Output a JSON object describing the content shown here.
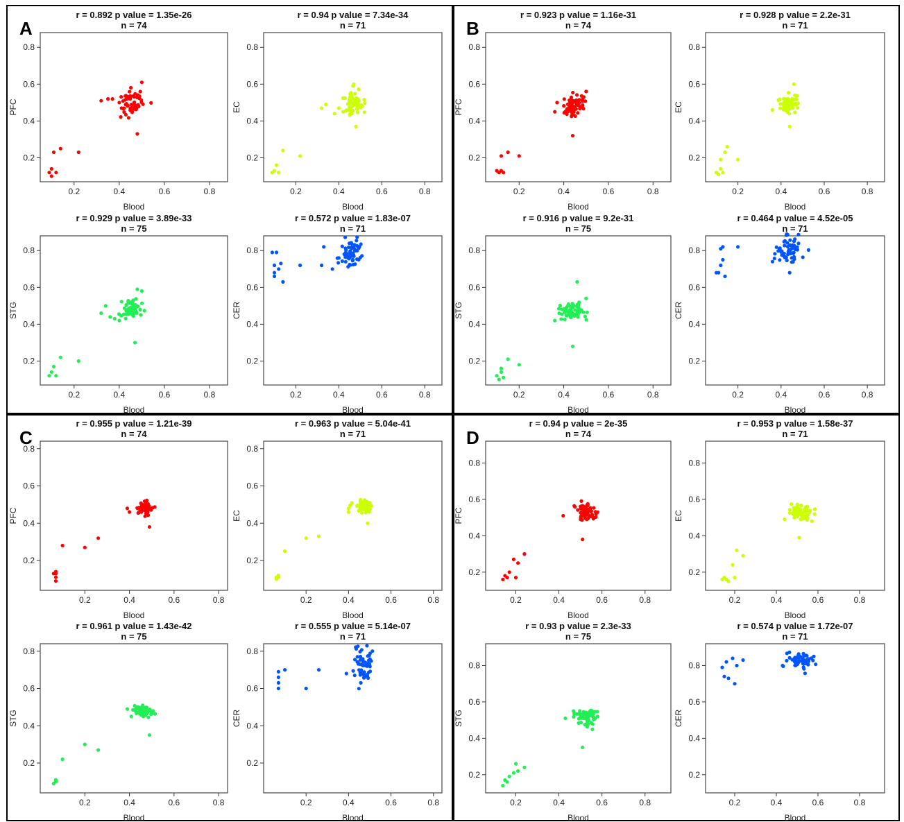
{
  "panels": [
    {
      "letter": "A"
    },
    {
      "letter": "B"
    },
    {
      "letter": "C"
    },
    {
      "letter": "D"
    }
  ],
  "axis_ticks": [
    0.2,
    0.4,
    0.6,
    0.8
  ],
  "colors": {
    "PFC": "#ff0000",
    "EC": "#ccff00",
    "STG": "#22ee55",
    "CER": "#0055ff"
  },
  "chart_data": [
    {
      "panel": "A",
      "type": "scatter",
      "region": "PFC",
      "title": "r = 0.892 p value = 1.35e-26",
      "subtitle": "n = 74",
      "xlabel": "Blood",
      "ylabel": "PFC",
      "xlim": [
        0.05,
        0.88
      ],
      "ylim": [
        0.07,
        0.88
      ],
      "color": "#ff0000",
      "outliers": [
        [
          0.09,
          0.12
        ],
        [
          0.1,
          0.14
        ],
        [
          0.12,
          0.12
        ],
        [
          0.1,
          0.1
        ],
        [
          0.11,
          0.23
        ],
        [
          0.14,
          0.25
        ],
        [
          0.22,
          0.23
        ],
        [
          0.32,
          0.51
        ],
        [
          0.35,
          0.52
        ],
        [
          0.37,
          0.52
        ],
        [
          0.4,
          0.5
        ],
        [
          0.41,
          0.47
        ],
        [
          0.48,
          0.33
        ],
        [
          0.5,
          0.61
        ]
      ],
      "cluster": {
        "n": 60,
        "cx": 0.46,
        "cy": 0.5,
        "sx": 0.025,
        "sy": 0.035,
        "seed": 101
      }
    },
    {
      "panel": "A",
      "type": "scatter",
      "region": "EC",
      "title": "r = 0.94 p value = 7.34e-34",
      "subtitle": "n = 71",
      "xlabel": "Blood",
      "ylabel": "EC",
      "xlim": [
        0.05,
        0.88
      ],
      "ylim": [
        0.07,
        0.88
      ],
      "color": "#ccff00",
      "outliers": [
        [
          0.09,
          0.12
        ],
        [
          0.1,
          0.13
        ],
        [
          0.11,
          0.16
        ],
        [
          0.12,
          0.12
        ],
        [
          0.14,
          0.24
        ],
        [
          0.22,
          0.21
        ],
        [
          0.32,
          0.47
        ],
        [
          0.34,
          0.49
        ],
        [
          0.38,
          0.44
        ],
        [
          0.4,
          0.47
        ],
        [
          0.42,
          0.45
        ],
        [
          0.47,
          0.6
        ],
        [
          0.48,
          0.37
        ]
      ],
      "cluster": {
        "n": 58,
        "cx": 0.47,
        "cy": 0.5,
        "sx": 0.025,
        "sy": 0.03,
        "seed": 202
      }
    },
    {
      "panel": "A",
      "type": "scatter",
      "region": "STG",
      "title": "r = 0.929 p value = 3.89e-33",
      "subtitle": "n = 75",
      "xlabel": "Blood",
      "ylabel": "STG",
      "xlim": [
        0.05,
        0.88
      ],
      "ylim": [
        0.07,
        0.88
      ],
      "color": "#22ee55",
      "outliers": [
        [
          0.09,
          0.12
        ],
        [
          0.1,
          0.14
        ],
        [
          0.11,
          0.17
        ],
        [
          0.12,
          0.12
        ],
        [
          0.14,
          0.22
        ],
        [
          0.22,
          0.2
        ],
        [
          0.32,
          0.46
        ],
        [
          0.34,
          0.5
        ],
        [
          0.36,
          0.44
        ],
        [
          0.38,
          0.43
        ],
        [
          0.4,
          0.42
        ],
        [
          0.47,
          0.3
        ],
        [
          0.48,
          0.59
        ],
        [
          0.5,
          0.58
        ]
      ],
      "cluster": {
        "n": 61,
        "cx": 0.46,
        "cy": 0.48,
        "sx": 0.022,
        "sy": 0.025,
        "seed": 303
      }
    },
    {
      "panel": "A",
      "type": "scatter",
      "region": "CER",
      "title": "r = 0.572 p value = 1.83e-07",
      "subtitle": "n = 71",
      "xlabel": "Blood",
      "ylabel": "CER",
      "xlim": [
        0.05,
        0.88
      ],
      "ylim": [
        0.07,
        0.88
      ],
      "color": "#0055ff",
      "outliers": [
        [
          0.09,
          0.79
        ],
        [
          0.1,
          0.72
        ],
        [
          0.11,
          0.79
        ],
        [
          0.1,
          0.68
        ],
        [
          0.1,
          0.66
        ],
        [
          0.12,
          0.7
        ],
        [
          0.13,
          0.73
        ],
        [
          0.14,
          0.63
        ],
        [
          0.22,
          0.72
        ],
        [
          0.32,
          0.72
        ],
        [
          0.33,
          0.82
        ],
        [
          0.37,
          0.7
        ],
        [
          0.4,
          0.76
        ]
      ],
      "cluster": {
        "n": 58,
        "cx": 0.46,
        "cy": 0.78,
        "sx": 0.022,
        "sy": 0.04,
        "seed": 404
      }
    },
    {
      "panel": "B",
      "type": "scatter",
      "region": "PFC",
      "title": "r = 0.923 p value = 1.16e-31",
      "subtitle": "n = 74",
      "xlabel": "Blood",
      "ylabel": "PFC",
      "xlim": [
        0.05,
        0.88
      ],
      "ylim": [
        0.07,
        0.88
      ],
      "color": "#ff0000",
      "outliers": [
        [
          0.1,
          0.13
        ],
        [
          0.11,
          0.12
        ],
        [
          0.12,
          0.13
        ],
        [
          0.13,
          0.12
        ],
        [
          0.12,
          0.21
        ],
        [
          0.15,
          0.23
        ],
        [
          0.2,
          0.21
        ],
        [
          0.36,
          0.45
        ],
        [
          0.37,
          0.5
        ],
        [
          0.44,
          0.32
        ],
        [
          0.5,
          0.56
        ],
        [
          0.49,
          0.53
        ]
      ],
      "cluster": {
        "n": 62,
        "cx": 0.44,
        "cy": 0.48,
        "sx": 0.025,
        "sy": 0.03,
        "seed": 505
      }
    },
    {
      "panel": "B",
      "type": "scatter",
      "region": "EC",
      "title": "r = 0.928 p value = 2.2e-31",
      "subtitle": "n = 71",
      "xlabel": "Blood",
      "ylabel": "EC",
      "xlim": [
        0.05,
        0.88
      ],
      "ylim": [
        0.07,
        0.88
      ],
      "color": "#ccff00",
      "outliers": [
        [
          0.1,
          0.12
        ],
        [
          0.11,
          0.11
        ],
        [
          0.12,
          0.14
        ],
        [
          0.13,
          0.12
        ],
        [
          0.12,
          0.19
        ],
        [
          0.14,
          0.23
        ],
        [
          0.15,
          0.26
        ],
        [
          0.2,
          0.19
        ],
        [
          0.36,
          0.46
        ],
        [
          0.44,
          0.37
        ],
        [
          0.46,
          0.6
        ]
      ],
      "cluster": {
        "n": 60,
        "cx": 0.44,
        "cy": 0.49,
        "sx": 0.025,
        "sy": 0.025,
        "seed": 606
      }
    },
    {
      "panel": "B",
      "type": "scatter",
      "region": "STG",
      "title": "r = 0.916 p value = 9.2e-31",
      "subtitle": "n = 75",
      "xlabel": "Blood",
      "ylabel": "STG",
      "xlim": [
        0.05,
        0.88
      ],
      "ylim": [
        0.07,
        0.88
      ],
      "color": "#22ee55",
      "outliers": [
        [
          0.1,
          0.12
        ],
        [
          0.11,
          0.1
        ],
        [
          0.12,
          0.14
        ],
        [
          0.13,
          0.11
        ],
        [
          0.12,
          0.16
        ],
        [
          0.15,
          0.21
        ],
        [
          0.2,
          0.18
        ],
        [
          0.36,
          0.42
        ],
        [
          0.44,
          0.28
        ],
        [
          0.46,
          0.63
        ],
        [
          0.5,
          0.54
        ]
      ],
      "cluster": {
        "n": 64,
        "cx": 0.44,
        "cy": 0.47,
        "sx": 0.028,
        "sy": 0.025,
        "seed": 707
      }
    },
    {
      "panel": "B",
      "type": "scatter",
      "region": "CER",
      "title": "r = 0.464 p value = 4.52e-05",
      "subtitle": "n = 71",
      "xlabel": "Blood",
      "ylabel": "CER",
      "xlim": [
        0.05,
        0.88
      ],
      "ylim": [
        0.07,
        0.88
      ],
      "color": "#0055ff",
      "outliers": [
        [
          0.1,
          0.68
        ],
        [
          0.11,
          0.68
        ],
        [
          0.12,
          0.81
        ],
        [
          0.13,
          0.82
        ],
        [
          0.12,
          0.72
        ],
        [
          0.13,
          0.75
        ],
        [
          0.14,
          0.66
        ],
        [
          0.2,
          0.82
        ],
        [
          0.36,
          0.74
        ],
        [
          0.44,
          0.68
        ]
      ],
      "cluster": {
        "n": 61,
        "cx": 0.44,
        "cy": 0.8,
        "sx": 0.03,
        "sy": 0.035,
        "seed": 808
      }
    },
    {
      "panel": "C",
      "type": "scatter",
      "region": "PFC",
      "title": "r = 0.955 p value = 1.21e-39",
      "subtitle": "n = 74",
      "xlabel": "Blood",
      "ylabel": "PFC",
      "xlim": [
        0.0,
        0.84
      ],
      "ylim": [
        0.04,
        0.84
      ],
      "color": "#ff0000",
      "outliers": [
        [
          0.07,
          0.09
        ],
        [
          0.07,
          0.11
        ],
        [
          0.07,
          0.13
        ],
        [
          0.07,
          0.14
        ],
        [
          0.06,
          0.13
        ],
        [
          0.1,
          0.28
        ],
        [
          0.2,
          0.27
        ],
        [
          0.26,
          0.32
        ],
        [
          0.39,
          0.48
        ],
        [
          0.4,
          0.46
        ],
        [
          0.49,
          0.38
        ]
      ],
      "cluster": {
        "n": 63,
        "cx": 0.47,
        "cy": 0.48,
        "sx": 0.018,
        "sy": 0.018,
        "seed": 909
      }
    },
    {
      "panel": "C",
      "type": "scatter",
      "region": "EC",
      "title": "r = 0.963 p value = 5.04e-41",
      "subtitle": "n = 71",
      "xlabel": "Blood",
      "ylabel": "EC",
      "xlim": [
        0.0,
        0.84
      ],
      "ylim": [
        0.04,
        0.84
      ],
      "color": "#ccff00",
      "outliers": [
        [
          0.06,
          0.11
        ],
        [
          0.06,
          0.1
        ],
        [
          0.07,
          0.12
        ],
        [
          0.07,
          0.11
        ],
        [
          0.1,
          0.25
        ],
        [
          0.2,
          0.32
        ],
        [
          0.26,
          0.33
        ],
        [
          0.4,
          0.46
        ],
        [
          0.4,
          0.48
        ],
        [
          0.49,
          0.4
        ]
      ],
      "cluster": {
        "n": 61,
        "cx": 0.47,
        "cy": 0.49,
        "sx": 0.018,
        "sy": 0.013,
        "seed": 1010
      }
    },
    {
      "panel": "C",
      "type": "scatter",
      "region": "STG",
      "title": "r = 0.961 p value = 1.43e-42",
      "subtitle": "n = 75",
      "xlabel": "Blood",
      "ylabel": "STG",
      "xlim": [
        0.0,
        0.84
      ],
      "ylim": [
        0.04,
        0.84
      ],
      "color": "#22ee55",
      "outliers": [
        [
          0.07,
          0.1
        ],
        [
          0.07,
          0.11
        ],
        [
          0.06,
          0.09
        ],
        [
          0.07,
          0.1
        ],
        [
          0.1,
          0.22
        ],
        [
          0.2,
          0.3
        ],
        [
          0.26,
          0.27
        ],
        [
          0.39,
          0.49
        ],
        [
          0.49,
          0.35
        ]
      ],
      "cluster": {
        "n": 66,
        "cx": 0.46,
        "cy": 0.48,
        "sx": 0.02,
        "sy": 0.017,
        "seed": 1111
      }
    },
    {
      "panel": "C",
      "type": "scatter",
      "region": "CER",
      "title": "r = 0.555 p value = 5.14e-07",
      "subtitle": "n = 71",
      "xlabel": "Blood",
      "ylabel": "CER",
      "xlim": [
        0.0,
        0.84
      ],
      "ylim": [
        0.04,
        0.84
      ],
      "color": "#0055ff",
      "outliers": [
        [
          0.07,
          0.6
        ],
        [
          0.07,
          0.63
        ],
        [
          0.07,
          0.66
        ],
        [
          0.07,
          0.69
        ],
        [
          0.1,
          0.7
        ],
        [
          0.2,
          0.6
        ],
        [
          0.26,
          0.7
        ],
        [
          0.39,
          0.68
        ]
      ],
      "cluster": {
        "n": 63,
        "cx": 0.47,
        "cy": 0.73,
        "sx": 0.02,
        "sy": 0.045,
        "seed": 1212
      }
    },
    {
      "panel": "D",
      "type": "scatter",
      "region": "PFC",
      "title": "r = 0.94 p value = 2e-35",
      "subtitle": "n = 74",
      "xlabel": "Blood",
      "ylabel": "PFC",
      "xlim": [
        0.06,
        0.92
      ],
      "ylim": [
        0.1,
        0.92
      ],
      "color": "#ff0000",
      "outliers": [
        [
          0.14,
          0.16
        ],
        [
          0.15,
          0.18
        ],
        [
          0.16,
          0.17
        ],
        [
          0.17,
          0.2
        ],
        [
          0.19,
          0.27
        ],
        [
          0.2,
          0.17
        ],
        [
          0.21,
          0.25
        ],
        [
          0.24,
          0.3
        ],
        [
          0.42,
          0.51
        ],
        [
          0.51,
          0.38
        ],
        [
          0.58,
          0.53
        ]
      ],
      "cluster": {
        "n": 63,
        "cx": 0.52,
        "cy": 0.53,
        "sx": 0.025,
        "sy": 0.025,
        "seed": 1313
      }
    },
    {
      "panel": "D",
      "type": "scatter",
      "region": "EC",
      "title": "r = 0.953 p value = 1.58e-37",
      "subtitle": "n = 71",
      "xlabel": "Blood",
      "ylabel": "EC",
      "xlim": [
        0.06,
        0.92
      ],
      "ylim": [
        0.1,
        0.92
      ],
      "color": "#ccff00",
      "outliers": [
        [
          0.14,
          0.16
        ],
        [
          0.15,
          0.17
        ],
        [
          0.16,
          0.16
        ],
        [
          0.17,
          0.15
        ],
        [
          0.19,
          0.24
        ],
        [
          0.2,
          0.17
        ],
        [
          0.21,
          0.32
        ],
        [
          0.24,
          0.29
        ],
        [
          0.44,
          0.49
        ],
        [
          0.51,
          0.39
        ]
      ],
      "cluster": {
        "n": 61,
        "cx": 0.52,
        "cy": 0.53,
        "sx": 0.025,
        "sy": 0.025,
        "seed": 1414
      }
    },
    {
      "panel": "D",
      "type": "scatter",
      "region": "STG",
      "title": "r = 0.93 p value = 2.3e-33",
      "subtitle": "n = 75",
      "xlabel": "Blood",
      "ylabel": "STG",
      "xlim": [
        0.06,
        0.92
      ],
      "ylim": [
        0.1,
        0.92
      ],
      "color": "#22ee55",
      "outliers": [
        [
          0.14,
          0.14
        ],
        [
          0.15,
          0.17
        ],
        [
          0.16,
          0.16
        ],
        [
          0.17,
          0.19
        ],
        [
          0.19,
          0.21
        ],
        [
          0.2,
          0.26
        ],
        [
          0.21,
          0.22
        ],
        [
          0.24,
          0.24
        ],
        [
          0.43,
          0.51
        ],
        [
          0.51,
          0.35
        ],
        [
          0.58,
          0.52
        ]
      ],
      "cluster": {
        "n": 64,
        "cx": 0.52,
        "cy": 0.52,
        "sx": 0.025,
        "sy": 0.025,
        "seed": 1515
      }
    },
    {
      "panel": "D",
      "type": "scatter",
      "region": "CER",
      "title": "r = 0.574 p value = 1.72e-07",
      "subtitle": "n = 71",
      "xlabel": "Blood",
      "ylabel": "CER",
      "xlim": [
        0.06,
        0.92
      ],
      "ylim": [
        0.1,
        0.92
      ],
      "color": "#0055ff",
      "outliers": [
        [
          0.14,
          0.79
        ],
        [
          0.15,
          0.74
        ],
        [
          0.16,
          0.82
        ],
        [
          0.17,
          0.73
        ],
        [
          0.19,
          0.84
        ],
        [
          0.2,
          0.7
        ],
        [
          0.21,
          0.8
        ],
        [
          0.24,
          0.83
        ],
        [
          0.43,
          0.8
        ],
        [
          0.58,
          0.85
        ]
      ],
      "cluster": {
        "n": 61,
        "cx": 0.52,
        "cy": 0.83,
        "sx": 0.03,
        "sy": 0.025,
        "seed": 1616
      }
    }
  ]
}
